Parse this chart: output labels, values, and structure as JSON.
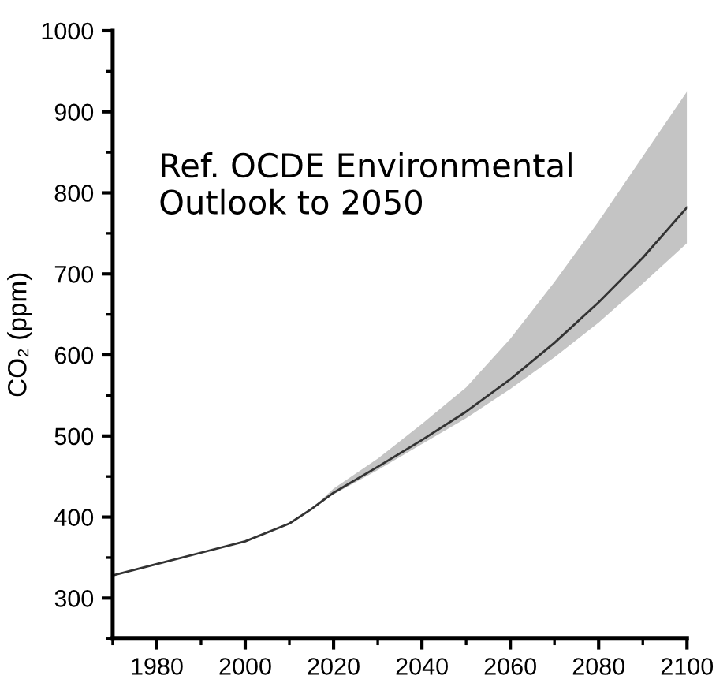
{
  "chart_data": {
    "type": "line",
    "ylabel": "CO₂ (ppm)",
    "annotations": [
      "Ref. OCDE Environmental\nOutlook to 2050"
    ],
    "x": [
      1970,
      1980,
      1990,
      2000,
      2010,
      2015,
      2020,
      2030,
      2040,
      2050,
      2060,
      2070,
      2080,
      2090,
      2100
    ],
    "series": [
      {
        "color": "#333333",
        "values": [
          328,
          342,
          356,
          370,
          392,
          410,
          430,
          462,
          495,
          530,
          570,
          615,
          665,
          720,
          782
        ],
        "lower": [
          null,
          null,
          null,
          null,
          null,
          410,
          428,
          458,
          490,
          522,
          558,
          597,
          640,
          688,
          738
        ],
        "upper": [
          null,
          null,
          null,
          null,
          null,
          410,
          435,
          472,
          515,
          560,
          620,
          690,
          765,
          845,
          925
        ]
      }
    ],
    "xlim": [
      1970,
      2100
    ],
    "xticks": [
      1980,
      2000,
      2020,
      2040,
      2060,
      2080,
      2100
    ],
    "ylim": [
      250,
      1000
    ],
    "yticks": [
      300,
      400,
      500,
      600,
      700,
      800,
      900,
      1000
    ],
    "grid": false,
    "legend": false,
    "marker": "none",
    "line_style": "solid"
  }
}
